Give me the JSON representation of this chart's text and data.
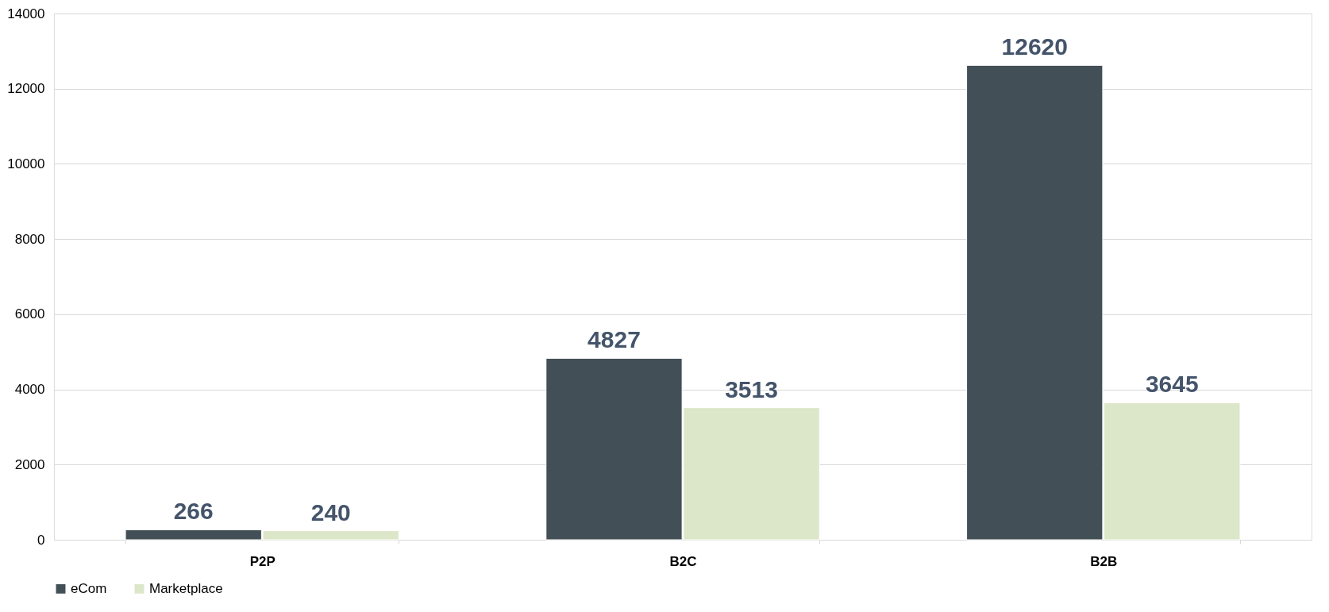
{
  "chart_data": {
    "type": "bar",
    "categories": [
      "P2P",
      "B2C",
      "B2B"
    ],
    "series": [
      {
        "name": "eCom",
        "color": "#434f57",
        "values": [
          266,
          4827,
          12620
        ]
      },
      {
        "name": "Marketplace",
        "color": "#dce6c8",
        "values": [
          240,
          3513,
          3645
        ]
      }
    ],
    "ylim": [
      0,
      14000
    ],
    "yticks": [
      0,
      2000,
      4000,
      6000,
      8000,
      10000,
      12000,
      14000
    ],
    "grid": "y",
    "legend": "bottom",
    "data_labels": true
  }
}
